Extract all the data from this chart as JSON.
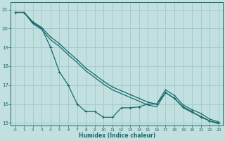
{
  "xlabel": "Humidex (Indice chaleur)",
  "bg_color": "#c2e0e0",
  "grid_color": "#9fc8c8",
  "line_color": "#1a6b6b",
  "xlim": [
    -0.5,
    23.5
  ],
  "ylim": [
    14.85,
    21.4
  ],
  "yticks": [
    15,
    16,
    17,
    18,
    19,
    20,
    21
  ],
  "xticks": [
    0,
    1,
    2,
    3,
    4,
    5,
    6,
    7,
    8,
    9,
    10,
    11,
    12,
    13,
    14,
    15,
    16,
    17,
    18,
    19,
    20,
    21,
    22,
    23
  ],
  "series_zigzag": {
    "x": [
      0,
      1,
      2,
      3,
      4,
      5,
      6,
      7,
      8,
      9,
      10,
      11,
      12,
      13,
      14,
      15,
      16,
      17,
      18,
      19,
      20,
      21,
      22,
      23
    ],
    "y": [
      20.85,
      20.85,
      20.3,
      20.0,
      19.0,
      17.7,
      17.0,
      16.0,
      15.6,
      15.6,
      15.3,
      15.3,
      15.8,
      15.8,
      15.85,
      16.0,
      16.0,
      16.6,
      16.3,
      15.85,
      15.6,
      15.3,
      15.1,
      15.0
    ]
  },
  "series_line1": {
    "x": [
      0,
      1,
      2,
      3,
      4,
      5,
      6,
      7,
      8,
      9,
      10,
      11,
      12,
      13,
      14,
      15,
      16,
      17,
      18,
      19,
      20,
      21,
      22,
      23
    ],
    "y": [
      20.85,
      20.85,
      20.35,
      20.05,
      19.55,
      19.2,
      18.75,
      18.35,
      17.9,
      17.55,
      17.2,
      16.9,
      16.7,
      16.5,
      16.3,
      16.1,
      16.0,
      16.75,
      16.45,
      15.95,
      15.7,
      15.5,
      15.2,
      15.05
    ]
  },
  "series_line2": {
    "x": [
      0,
      1,
      2,
      3,
      4,
      5,
      6,
      7,
      8,
      9,
      10,
      11,
      12,
      13,
      14,
      15,
      16,
      17,
      18,
      19,
      20,
      21,
      22,
      23
    ],
    "y": [
      20.85,
      20.85,
      20.25,
      19.95,
      19.4,
      19.05,
      18.6,
      18.2,
      17.75,
      17.4,
      17.05,
      16.75,
      16.55,
      16.35,
      16.15,
      15.95,
      15.85,
      16.6,
      16.3,
      15.8,
      15.55,
      15.35,
      15.1,
      14.95
    ]
  }
}
